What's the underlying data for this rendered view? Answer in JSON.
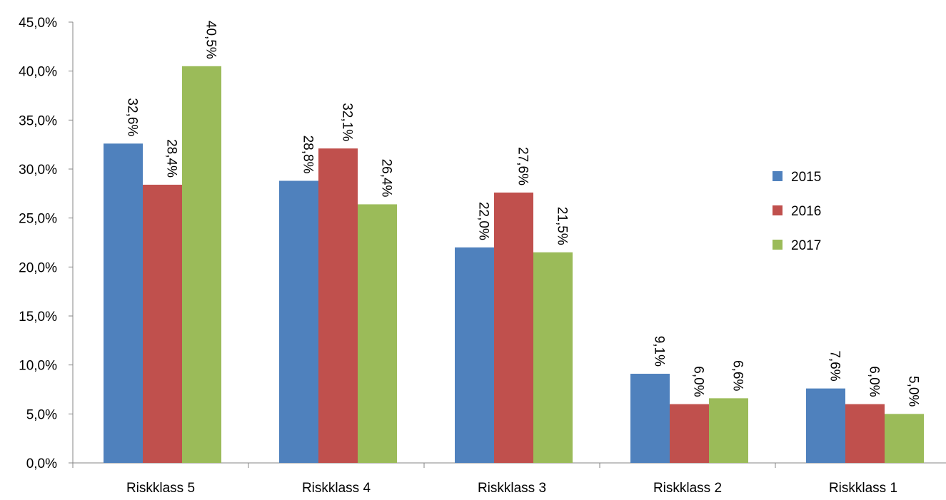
{
  "chart_data": {
    "type": "bar",
    "title": "",
    "xlabel": "",
    "ylabel": "",
    "categories": [
      "Riskklass 5",
      "Riskklass 4",
      "Riskklass 3",
      "Riskklass 2",
      "Riskklass 1"
    ],
    "series": [
      {
        "name": "2015",
        "color": "#4F81BD",
        "values": [
          32.6,
          28.8,
          22.0,
          9.1,
          7.6
        ],
        "labels": [
          "32,6%",
          "28,8%",
          "22,0%",
          "9,1%",
          "7,6%"
        ]
      },
      {
        "name": "2016",
        "color": "#C0504D",
        "values": [
          28.4,
          32.1,
          27.6,
          6.0,
          6.0
        ],
        "labels": [
          "28,4%",
          "32,1%",
          "27,6%",
          "6,0%",
          "6,0%"
        ]
      },
      {
        "name": "2017",
        "color": "#9BBB59",
        "values": [
          40.5,
          26.4,
          21.5,
          6.6,
          5.0
        ],
        "labels": [
          "40,5%",
          "26,4%",
          "21,5%",
          "6,6%",
          "5,0%"
        ]
      }
    ],
    "ylim": [
      0,
      45
    ],
    "yticks": [
      0,
      5,
      10,
      15,
      20,
      25,
      30,
      35,
      40,
      45
    ],
    "ytick_labels": [
      "0,0%",
      "5,0%",
      "10,0%",
      "15,0%",
      "20,0%",
      "25,0%",
      "30,0%",
      "35,0%",
      "40,0%",
      "45,0%"
    ],
    "grid": false,
    "legend_position": "right"
  }
}
